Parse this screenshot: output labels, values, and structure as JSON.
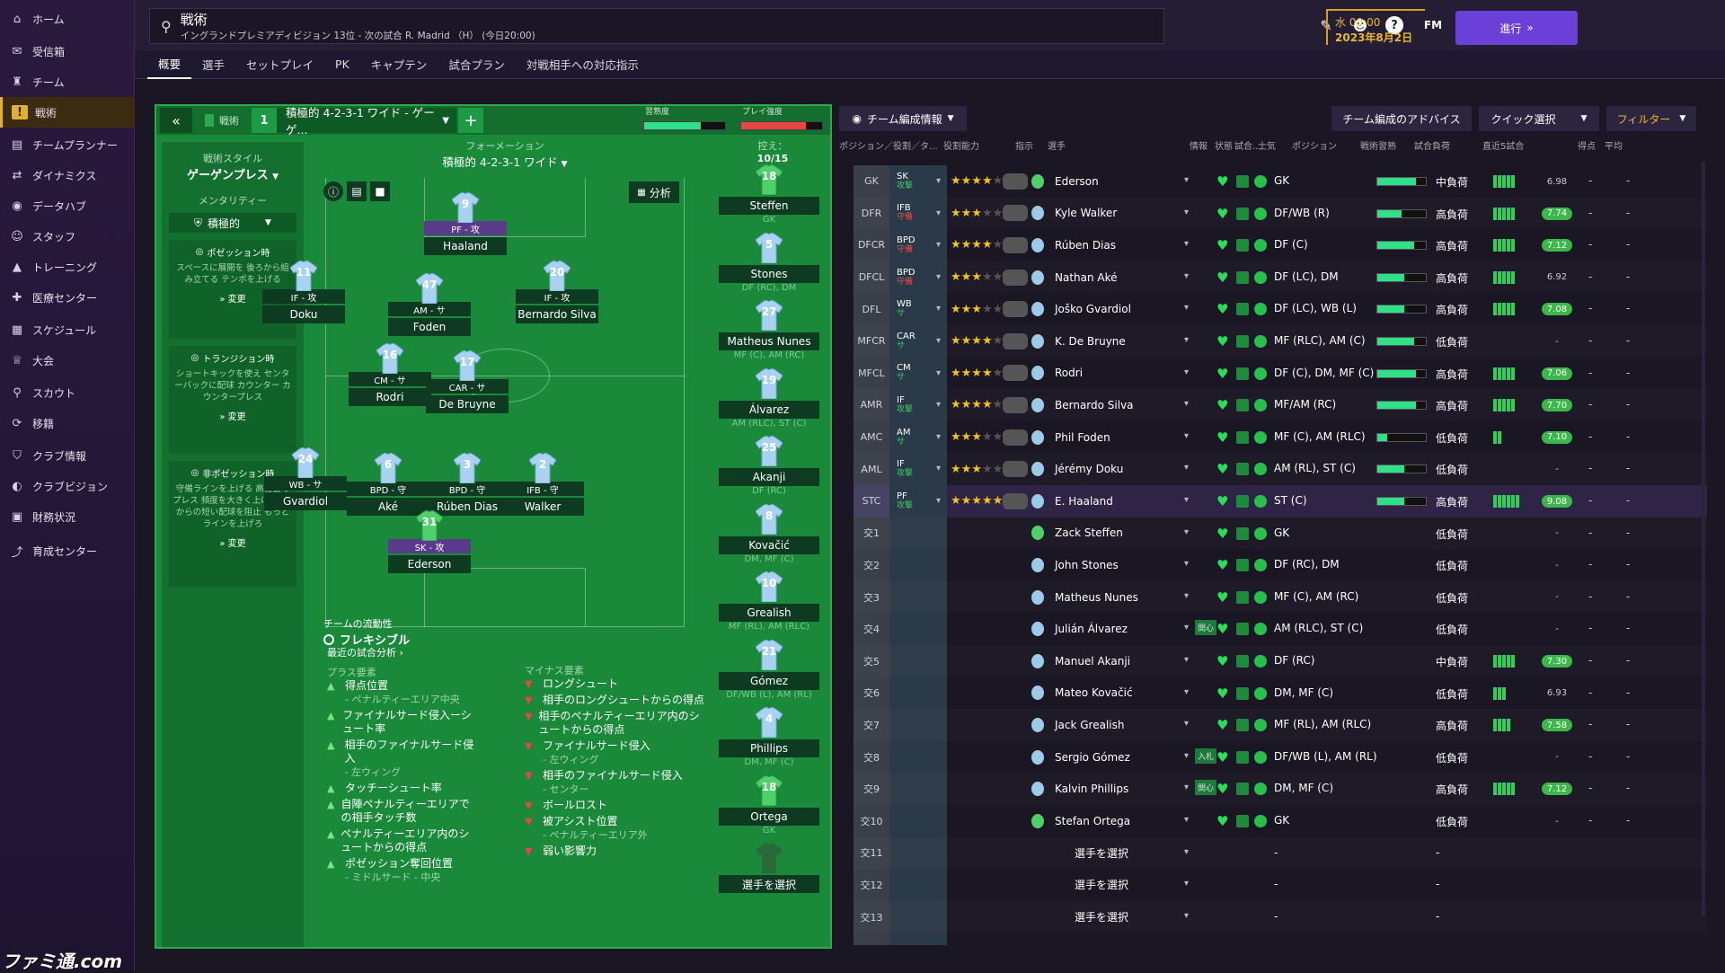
{
  "sidebar": {
    "items": [
      {
        "label": "ホーム",
        "icon": "home-icon"
      },
      {
        "label": "受信箱",
        "icon": "inbox-icon"
      },
      {
        "label": "チーム",
        "icon": "shirt-icon"
      },
      {
        "label": "戦術",
        "icon": "tactics-icon",
        "active": true
      },
      {
        "label": "チームプランナー",
        "icon": "planner-icon"
      },
      {
        "label": "ダイナミクス",
        "icon": "dynamics-icon"
      },
      {
        "label": "データハブ",
        "icon": "datahub-icon"
      },
      {
        "label": "スタッフ",
        "icon": "staff-icon"
      },
      {
        "label": "トレーニング",
        "icon": "training-icon"
      },
      {
        "label": "医療センター",
        "icon": "medical-icon"
      },
      {
        "label": "スケジュール",
        "icon": "calendar-icon"
      },
      {
        "label": "大会",
        "icon": "trophy-icon"
      },
      {
        "label": "スカウト",
        "icon": "scout-icon"
      },
      {
        "label": "移籍",
        "icon": "transfer-icon"
      },
      {
        "label": "クラブ情報",
        "icon": "shield-icon"
      },
      {
        "label": "クラブビジョン",
        "icon": "vision-icon"
      },
      {
        "label": "財務状況",
        "icon": "finance-icon"
      },
      {
        "label": "育成センター",
        "icon": "youth-icon"
      }
    ]
  },
  "topbar": {
    "title": "戦術",
    "subtitle": "イングランドプレミアディビジョン 13位 - 次の試合 R. Madrid （H） (今日20:00)",
    "fm": "FM",
    "time": "水 00:00",
    "date": "2023年8月2日",
    "continue": "進行"
  },
  "tabs": [
    "概要",
    "選手",
    "セットプレイ",
    "PK",
    "キャプテン",
    "試合プラン",
    "対戦相手への対応指示"
  ],
  "tactic": {
    "tab_label": "戦術",
    "slot": "1",
    "name": "積極的 4-2-3-1 ワイド - ゲーゲ...",
    "familiarity_label": "習熟度",
    "intensity_label": "プレイ強度",
    "familiarity": 0.7,
    "intensity": 0.8
  },
  "style": {
    "title": "戦術スタイル",
    "value": "ゲーゲンプレス",
    "mentality_label": "メンタリティー",
    "mentality": "積極的",
    "boxes": [
      {
        "title": "ポゼッション時",
        "body": "スペースに展開を 後ろから組み立てる テンポを上げる",
        "change": "変更"
      },
      {
        "title": "トランジション時",
        "body": "ショートキックを使え センターバックに配球 カウンター カウンタープレス",
        "change": "変更"
      },
      {
        "title": "非ポゼッション時",
        "body": "守備ラインを上げる 高位置でプレス 頻度を大きく上げろ GKからの短い配球を阻止 もっとラインを上げろ",
        "change": "変更"
      }
    ],
    "fluidity_label": "チームの流動性",
    "fluidity": "フレキシブル"
  },
  "formation": {
    "label": "フォーメーション",
    "value": "積極的 4-2-3-1 ワイド",
    "analysis": "分析"
  },
  "players": [
    {
      "num": "9",
      "role": "PF - 攻",
      "name": "Haaland",
      "purple": true
    },
    {
      "num": "11",
      "role": "IF - 攻",
      "name": "Doku"
    },
    {
      "num": "47",
      "role": "AM - サ",
      "name": "Foden"
    },
    {
      "num": "20",
      "role": "IF - 攻",
      "name": "Bernardo Silva"
    },
    {
      "num": "16",
      "role": "CM - サ",
      "name": "Rodri"
    },
    {
      "num": "17",
      "role": "CAR - サ",
      "name": "De Bruyne"
    },
    {
      "num": "24",
      "role": "WB - サ",
      "name": "Gvardiol"
    },
    {
      "num": "6",
      "role": "BPD - 守",
      "name": "Aké"
    },
    {
      "num": "3",
      "role": "BPD - 守",
      "name": "Rúben Dias"
    },
    {
      "num": "2",
      "role": "IFB - 守",
      "name": "Walker"
    },
    {
      "num": "31",
      "role": "SK - 攻",
      "name": "Ederson",
      "purple": true
    }
  ],
  "subs": {
    "label": "控え：",
    "count": "10/15",
    "items": [
      {
        "num": "18",
        "name": "Steffen",
        "pos": "GK"
      },
      {
        "num": "5",
        "name": "Stones",
        "pos": "DF (RC), DM"
      },
      {
        "num": "27",
        "name": "Matheus Nunes",
        "pos": "MF (C), AM (RC)"
      },
      {
        "num": "19",
        "name": "Álvarez",
        "pos": "AM (RLC), ST (C)"
      },
      {
        "num": "25",
        "name": "Akanji",
        "pos": "DF (RC)"
      },
      {
        "num": "8",
        "name": "Kovačić",
        "pos": "DM, MF (C)"
      },
      {
        "num": "10",
        "name": "Grealish",
        "pos": "MF (RL), AM (RLC)"
      },
      {
        "num": "21",
        "name": "Gómez",
        "pos": "DF/WB (L), AM (RL)"
      },
      {
        "num": "4",
        "name": "Phillips",
        "pos": "DM, MF (C)"
      },
      {
        "num": "18",
        "name": "Ortega",
        "pos": "GK"
      },
      {
        "num": "",
        "name": "選手を選択",
        "pos": ""
      }
    ]
  },
  "analysis": {
    "title": "最近の試合分析",
    "plus_title": "プラス要素",
    "minus_title": "マイナス要素",
    "plus": [
      {
        "t": "得点位置",
        "s": "- ペナルティーエリア中央"
      },
      {
        "t": "ファイナルサード侵入ーシュート率",
        "s": ""
      },
      {
        "t": "相手のファイナルサード侵入",
        "s": "- 左ウィング"
      },
      {
        "t": "タッチーシュート率",
        "s": ""
      },
      {
        "t": "自陣ペナルティーエリアでの相手タッチ数",
        "s": ""
      },
      {
        "t": "ペナルティーエリア内のシュートからの得点",
        "s": ""
      },
      {
        "t": "ポゼッション奪回位置",
        "s": "- ミドルサード - 中央"
      }
    ],
    "minus": [
      {
        "t": "ロングシュート",
        "s": ""
      },
      {
        "t": "相手のロングシュートからの得点",
        "s": ""
      },
      {
        "t": "相手のペナルティーエリア内のシュートからの得点",
        "s": ""
      },
      {
        "t": "ファイナルサード侵入",
        "s": "- 左ウィング"
      },
      {
        "t": "相手のファイナルサード侵入",
        "s": "- センター"
      },
      {
        "t": "ボールロスト",
        "s": ""
      },
      {
        "t": "被アシスト位置",
        "s": "- ペナルティーエリア外"
      },
      {
        "t": "弱い影響力",
        "s": ""
      }
    ]
  },
  "rightpanel": {
    "team_info": "チーム編成情報",
    "advice": "チーム編成のアドバイス",
    "quick": "クイック選択",
    "filter": "フィルター",
    "headers": [
      "ポジション／役割／タ...",
      "役割能力",
      "指示",
      "選手",
      "情報",
      "状態",
      "試合...",
      "士気",
      "ポジション",
      "戦術習熟",
      "試合負荷",
      "直近5試合",
      "得点",
      "平均"
    ],
    "rows": [
      {
        "pos": "GK",
        "role": "SK",
        "duty": "攻撃",
        "stars": 4,
        "name": "Ederson",
        "position": "GK",
        "famil": 0.8,
        "load": "中負荷",
        "rating": "6.98",
        "rcolor": "",
        "bars": 5
      },
      {
        "pos": "DFR",
        "role": "IFB",
        "duty": "守備",
        "stars": 2.5,
        "name": "Kyle Walker",
        "position": "DF/WB (R)",
        "famil": 0.5,
        "load": "高負荷",
        "rating": "7.74",
        "rcolor": "#3bb84a",
        "bars": 5
      },
      {
        "pos": "DFCR",
        "role": "BPD",
        "duty": "守備",
        "stars": 4,
        "name": "Rúben Dias",
        "position": "DF (C)",
        "famil": 0.75,
        "load": "高負荷",
        "rating": "7.12",
        "rcolor": "#3bb84a",
        "bars": 5
      },
      {
        "pos": "DFCL",
        "role": "BPD",
        "duty": "守備",
        "stars": 2.5,
        "name": "Nathan Aké",
        "position": "DF (LC), DM",
        "famil": 0.55,
        "load": "高負荷",
        "rating": "6.92",
        "rcolor": "",
        "bars": 5
      },
      {
        "pos": "DFL",
        "role": "WB",
        "duty": "サ",
        "stars": 2.5,
        "name": "Joško Gvardiol",
        "position": "DF (LC), WB (L)",
        "famil": 0.55,
        "load": "高負荷",
        "rating": "7.08",
        "rcolor": "#3bb84a",
        "bars": 5
      },
      {
        "pos": "MFCR",
        "role": "CAR",
        "duty": "サ",
        "stars": 4,
        "name": "K. De Bruyne",
        "position": "MF (RLC), AM (C)",
        "famil": 0.75,
        "load": "低負荷",
        "rating": "-",
        "rcolor": "",
        "bars": 0
      },
      {
        "pos": "MFCL",
        "role": "CM",
        "duty": "サ",
        "stars": 4,
        "name": "Rodri",
        "position": "DF (C), DM, MF (C)",
        "famil": 0.8,
        "load": "高負荷",
        "rating": "7.06",
        "rcolor": "#3bb84a",
        "bars": 5
      },
      {
        "pos": "AMR",
        "role": "IF",
        "duty": "攻撃",
        "stars": 4,
        "name": "Bernardo Silva",
        "position": "MF/AM (RC)",
        "famil": 0.8,
        "load": "高負荷",
        "rating": "7.70",
        "rcolor": "#3bb84a",
        "bars": 5
      },
      {
        "pos": "AMC",
        "role": "AM",
        "duty": "サ",
        "stars": 3,
        "name": "Phil Foden",
        "position": "MF (C), AM (RLC)",
        "famil": 0.2,
        "load": "低負荷",
        "rating": "7.10",
        "rcolor": "#3bb84a",
        "bars": 2
      },
      {
        "pos": "AML",
        "role": "IF",
        "duty": "攻撃",
        "stars": 2.5,
        "name": "Jérémy Doku",
        "position": "AM (RL), ST (C)",
        "famil": 0.55,
        "load": "低負荷",
        "rating": "-",
        "rcolor": "",
        "bars": 0
      },
      {
        "pos": "STC",
        "role": "PF",
        "duty": "攻撃",
        "stars": 4.5,
        "name": "E. Haaland",
        "position": "ST (C)",
        "famil": 0.55,
        "load": "高負荷",
        "rating": "9.08",
        "rcolor": "#3bb84a",
        "bars": 6
      },
      {
        "pos": "交1",
        "name": "Zack Steffen",
        "position": "GK",
        "load": "低負荷",
        "rating": "-",
        "bars": 0
      },
      {
        "pos": "交2",
        "name": "John Stones",
        "position": "DF (RC), DM",
        "load": "低負荷",
        "rating": "-",
        "bars": 0
      },
      {
        "pos": "交3",
        "name": "Matheus Nunes",
        "position": "MF (C), AM (RC)",
        "load": "低負荷",
        "rating": "-",
        "bars": 0
      },
      {
        "pos": "交4",
        "name": "Julián Álvarez",
        "position": "AM (RLC), ST (C)",
        "load": "低負荷",
        "rating": "-",
        "bars": 0,
        "tag": "関心"
      },
      {
        "pos": "交5",
        "name": "Manuel Akanji",
        "position": "DF (RC)",
        "load": "中負荷",
        "rating": "7.30",
        "rcolor": "#3bb84a",
        "bars": 5
      },
      {
        "pos": "交6",
        "name": "Mateo Kovačić",
        "position": "DM, MF (C)",
        "load": "低負荷",
        "rating": "6.93",
        "rcolor": "",
        "bars": 3
      },
      {
        "pos": "交7",
        "name": "Jack Grealish",
        "position": "MF (RL), AM (RLC)",
        "load": "高負荷",
        "rating": "7.58",
        "rcolor": "#3bb84a",
        "bars": 4
      },
      {
        "pos": "交8",
        "name": "Sergio Gómez",
        "position": "DF/WB (L), AM (RL)",
        "load": "低負荷",
        "rating": "-",
        "bars": 0,
        "tag": "入札"
      },
      {
        "pos": "交9",
        "name": "Kalvin Phillips",
        "position": "DM, MF (C)",
        "load": "高負荷",
        "rating": "7.12",
        "rcolor": "#3bb84a",
        "bars": 5,
        "tag": "関心"
      },
      {
        "pos": "交10",
        "name": "Stefan Ortega",
        "position": "GK",
        "load": "低負荷",
        "rating": "-",
        "bars": 0
      },
      {
        "pos": "交11",
        "name": "選手を選択",
        "position": "-",
        "load": "-",
        "rating": "",
        "bars": 0,
        "empty": true
      },
      {
        "pos": "交12",
        "name": "選手を選択",
        "position": "-",
        "load": "-",
        "rating": "",
        "bars": 0,
        "empty": true
      },
      {
        "pos": "交13",
        "name": "選手を選択",
        "position": "-",
        "load": "-",
        "rating": "",
        "bars": 0,
        "empty": true
      }
    ]
  },
  "watermark": "ファミ通.com"
}
